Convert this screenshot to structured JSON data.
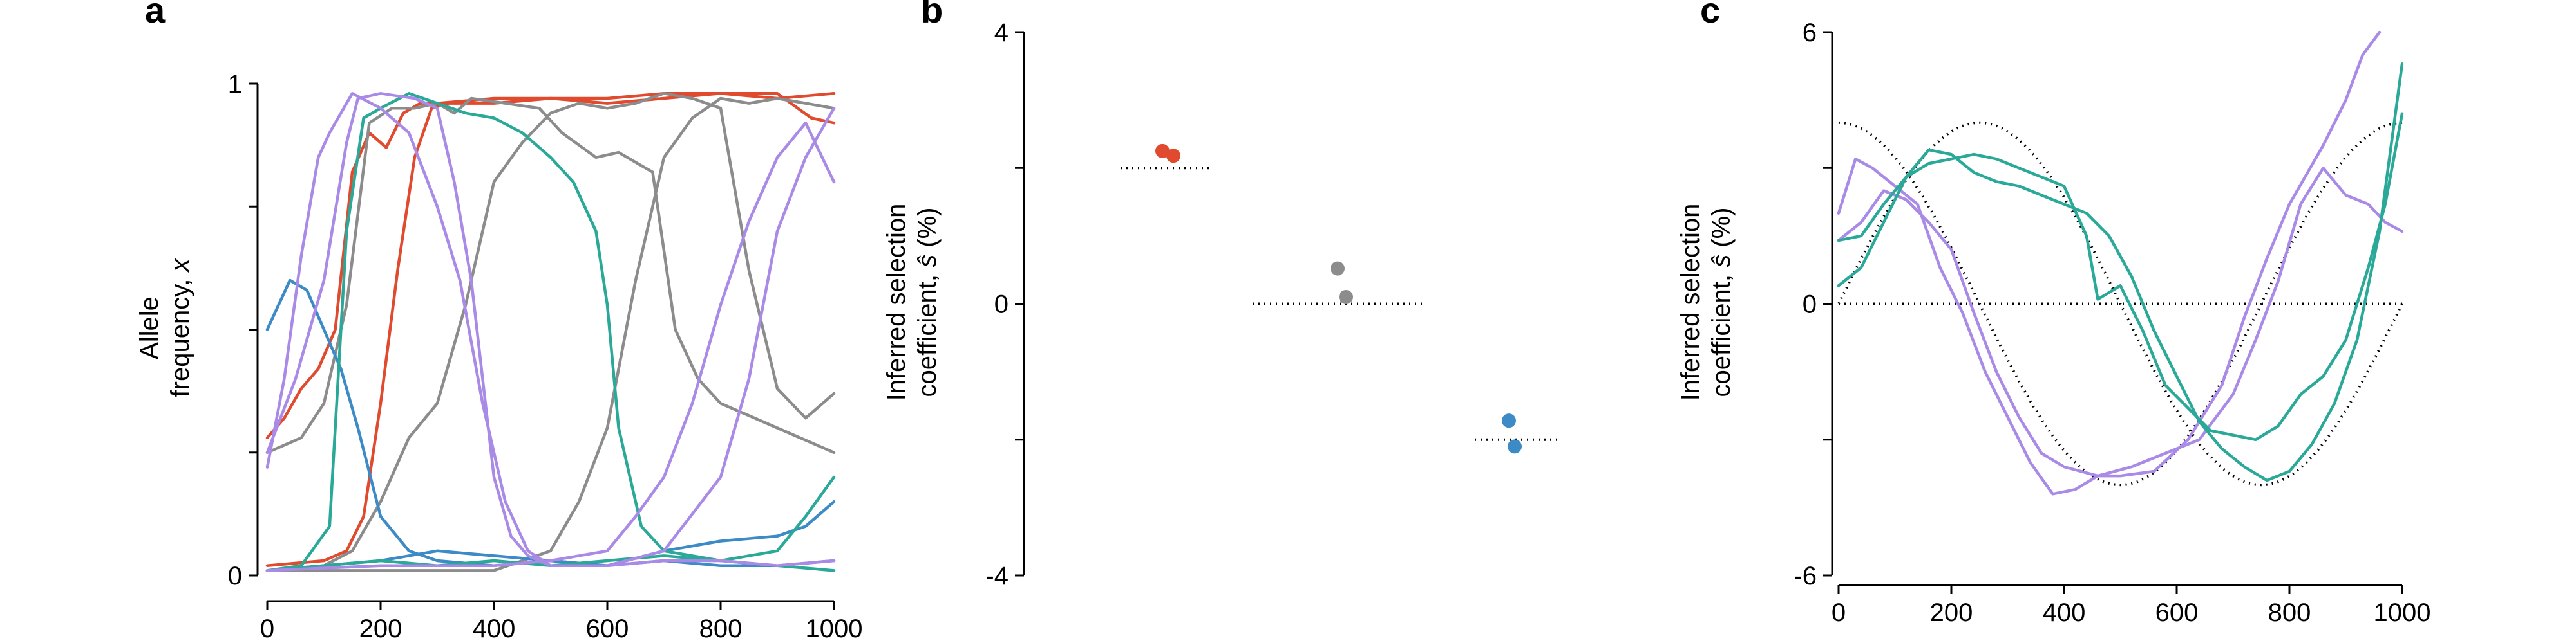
{
  "colors": {
    "red": "#e04a2f",
    "gray": "#8c8c8c",
    "blue": "#3c8ac6",
    "teal": "#2aa898",
    "purple": "#a98ae6"
  },
  "chart_data": [
    {
      "panel": "a",
      "type": "line",
      "xlabel": "",
      "ylabel_line1": "Allele",
      "ylabel_line2": "frequency, ",
      "ylabel_var": "x",
      "xlim": [
        0,
        1000
      ],
      "ylim": [
        0,
        1
      ],
      "xticks": [
        0,
        200,
        400,
        600,
        800,
        1000
      ],
      "yticks": [
        0,
        1
      ],
      "yticks_minor": [
        0.25,
        0.5,
        0.75
      ],
      "series": [
        {
          "color": "red",
          "x": [
            0,
            30,
            60,
            90,
            120,
            150,
            180,
            210,
            240,
            270,
            300,
            400,
            500,
            600,
            700,
            800,
            900,
            1000
          ],
          "y": [
            0.28,
            0.32,
            0.38,
            0.42,
            0.5,
            0.82,
            0.9,
            0.87,
            0.94,
            0.96,
            0.96,
            0.97,
            0.97,
            0.97,
            0.98,
            0.98,
            0.97,
            0.98
          ]
        },
        {
          "color": "red",
          "x": [
            0,
            100,
            140,
            170,
            200,
            230,
            260,
            290,
            320,
            400,
            500,
            600,
            700,
            800,
            900,
            960,
            1000
          ],
          "y": [
            0.02,
            0.03,
            0.05,
            0.12,
            0.35,
            0.62,
            0.85,
            0.95,
            0.96,
            0.96,
            0.97,
            0.96,
            0.97,
            0.98,
            0.98,
            0.93,
            0.92
          ]
        },
        {
          "color": "gray",
          "x": [
            0,
            60,
            100,
            140,
            180,
            220,
            260,
            300,
            330,
            360,
            420,
            480,
            520,
            580,
            620,
            680,
            720,
            760,
            800,
            900,
            1000
          ],
          "y": [
            0.25,
            0.28,
            0.35,
            0.55,
            0.92,
            0.95,
            0.95,
            0.96,
            0.94,
            0.97,
            0.96,
            0.95,
            0.9,
            0.85,
            0.86,
            0.82,
            0.5,
            0.4,
            0.35,
            0.3,
            0.25
          ]
        },
        {
          "color": "gray",
          "x": [
            0,
            100,
            150,
            200,
            250,
            300,
            350,
            400,
            450,
            500,
            550,
            600,
            650,
            700,
            750,
            800,
            850,
            900,
            950,
            1000
          ],
          "y": [
            0.01,
            0.02,
            0.05,
            0.15,
            0.28,
            0.35,
            0.55,
            0.8,
            0.88,
            0.94,
            0.96,
            0.95,
            0.96,
            0.98,
            0.97,
            0.95,
            0.62,
            0.38,
            0.32,
            0.37
          ]
        },
        {
          "color": "gray",
          "x": [
            0,
            400,
            500,
            550,
            600,
            650,
            700,
            750,
            800,
            850,
            900,
            950,
            1000
          ],
          "y": [
            0.01,
            0.01,
            0.05,
            0.15,
            0.3,
            0.6,
            0.85,
            0.93,
            0.97,
            0.96,
            0.97,
            0.96,
            0.95
          ]
        },
        {
          "color": "blue",
          "x": [
            0,
            20,
            40,
            70,
            100,
            130,
            160,
            200,
            250,
            300,
            400,
            500,
            600,
            700,
            800,
            900,
            1000
          ],
          "y": [
            0.5,
            0.55,
            0.6,
            0.58,
            0.5,
            0.42,
            0.3,
            0.12,
            0.05,
            0.03,
            0.02,
            0.03,
            0.02,
            0.03,
            0.02,
            0.02,
            0.03
          ]
        },
        {
          "color": "blue",
          "x": [
            0,
            100,
            200,
            300,
            400,
            500,
            600,
            700,
            800,
            900,
            950,
            1000
          ],
          "y": [
            0.01,
            0.02,
            0.03,
            0.05,
            0.04,
            0.03,
            0.02,
            0.05,
            0.07,
            0.08,
            0.1,
            0.15
          ]
        },
        {
          "color": "teal",
          "x": [
            0,
            60,
            110,
            140,
            170,
            200,
            250,
            300,
            350,
            400,
            450,
            500,
            540,
            580,
            600,
            620,
            660,
            700,
            800,
            900,
            1000
          ],
          "y": [
            0.01,
            0.02,
            0.1,
            0.7,
            0.93,
            0.95,
            0.98,
            0.96,
            0.94,
            0.93,
            0.9,
            0.85,
            0.8,
            0.7,
            0.55,
            0.3,
            0.1,
            0.05,
            0.03,
            0.02,
            0.01
          ]
        },
        {
          "color": "teal",
          "x": [
            0,
            100,
            200,
            300,
            400,
            500,
            600,
            700,
            800,
            900,
            950,
            1000
          ],
          "y": [
            0.01,
            0.02,
            0.03,
            0.02,
            0.03,
            0.02,
            0.03,
            0.04,
            0.03,
            0.05,
            0.12,
            0.2
          ]
        },
        {
          "color": "purple",
          "x": [
            0,
            30,
            60,
            90,
            110,
            130,
            150,
            200,
            250,
            300,
            340,
            380,
            420,
            460,
            500,
            600,
            700,
            800,
            900,
            1000
          ],
          "y": [
            0.22,
            0.4,
            0.65,
            0.85,
            0.9,
            0.94,
            0.98,
            0.95,
            0.9,
            0.75,
            0.6,
            0.35,
            0.15,
            0.05,
            0.02,
            0.02,
            0.03,
            0.03,
            0.02,
            0.03
          ]
        },
        {
          "color": "purple",
          "x": [
            0,
            50,
            100,
            140,
            160,
            200,
            260,
            300,
            330,
            360,
            380,
            400,
            430,
            460,
            500,
            600,
            700,
            800,
            850,
            900,
            950,
            1000
          ],
          "y": [
            0.25,
            0.4,
            0.6,
            0.88,
            0.97,
            0.98,
            0.97,
            0.95,
            0.8,
            0.6,
            0.4,
            0.2,
            0.08,
            0.04,
            0.02,
            0.02,
            0.05,
            0.2,
            0.4,
            0.7,
            0.85,
            0.95
          ]
        },
        {
          "color": "purple",
          "x": [
            0,
            200,
            400,
            500,
            600,
            650,
            700,
            750,
            800,
            850,
            900,
            950,
            1000
          ],
          "y": [
            0.01,
            0.02,
            0.02,
            0.03,
            0.05,
            0.12,
            0.2,
            0.35,
            0.55,
            0.72,
            0.85,
            0.92,
            0.8
          ]
        }
      ]
    },
    {
      "panel": "b",
      "type": "scatter",
      "ylabel_line1": "Inferred selection",
      "ylabel_line2": "coefficient, ",
      "ylabel_var": "ŝ",
      "ylabel_unit": " (%)",
      "ylim": [
        -4,
        4
      ],
      "yticks": [
        -4,
        0,
        4
      ],
      "yticks_minor": [
        -2,
        2
      ],
      "groups": [
        {
          "color": "red",
          "true_value": 2,
          "points": [
            2.25,
            2.18
          ]
        },
        {
          "color": "gray",
          "true_value": 0,
          "points": [
            0.52,
            0.1
          ]
        },
        {
          "color": "blue",
          "true_value": -2,
          "points": [
            -1.72,
            -2.1
          ]
        }
      ]
    },
    {
      "panel": "c",
      "type": "line",
      "ylabel_line1": "Inferred selection",
      "ylabel_line2": "coefficient, ",
      "ylabel_var": "ŝ",
      "ylabel_unit": " (%)",
      "xlim": [
        0,
        1000
      ],
      "ylim": [
        -6,
        6
      ],
      "xticks": [
        0,
        200,
        400,
        600,
        800,
        1000
      ],
      "yticks": [
        -6,
        0,
        6
      ],
      "yticks_minor": [
        -3,
        3
      ],
      "true_curves": [
        {
          "color": "teal",
          "amplitude": 4,
          "phase_shift": 250
        },
        {
          "color": "purple",
          "amplitude": 4,
          "phase_shift": 0
        }
      ],
      "series": [
        {
          "color": "purple",
          "x": [
            0,
            30,
            60,
            100,
            140,
            180,
            220,
            260,
            300,
            340,
            380,
            420,
            460,
            500,
            560,
            620,
            680,
            720,
            760,
            800,
            860,
            900,
            930,
            960
          ],
          "y": [
            2.0,
            3.2,
            3.0,
            2.6,
            2.2,
            0.8,
            -0.2,
            -1.5,
            -2.5,
            -3.5,
            -4.2,
            -4.1,
            -3.8,
            -3.8,
            -3.7,
            -3.0,
            -1.8,
            -0.3,
            1.0,
            2.2,
            3.5,
            4.5,
            5.5,
            6.0
          ]
        },
        {
          "color": "purple",
          "x": [
            0,
            40,
            80,
            120,
            160,
            200,
            240,
            280,
            320,
            360,
            400,
            460,
            520,
            580,
            640,
            700,
            740,
            780,
            820,
            860,
            900,
            940,
            970,
            1000
          ],
          "y": [
            1.4,
            1.8,
            2.5,
            2.3,
            1.8,
            1.2,
            -0.2,
            -1.5,
            -2.5,
            -3.3,
            -3.6,
            -3.8,
            -3.6,
            -3.3,
            -3.0,
            -2.0,
            -0.8,
            0.5,
            2.2,
            3.0,
            2.4,
            2.2,
            1.8,
            1.6
          ]
        },
        {
          "color": "teal",
          "x": [
            0,
            40,
            80,
            120,
            160,
            200,
            240,
            280,
            320,
            360,
            400,
            440,
            460,
            500,
            540,
            580,
            620,
            660,
            700,
            740,
            780,
            820,
            860,
            900,
            940,
            970,
            1000
          ],
          "y": [
            1.4,
            1.5,
            2.2,
            2.8,
            3.1,
            3.2,
            3.3,
            3.2,
            3.0,
            2.8,
            2.6,
            1.5,
            0.1,
            0.4,
            -0.6,
            -1.8,
            -2.3,
            -2.8,
            -2.9,
            -3.0,
            -2.7,
            -2.0,
            -1.6,
            -0.8,
            0.8,
            2.2,
            4.2
          ]
        },
        {
          "color": "teal",
          "x": [
            0,
            40,
            80,
            120,
            160,
            200,
            240,
            280,
            320,
            360,
            400,
            440,
            480,
            520,
            560,
            600,
            640,
            680,
            720,
            760,
            800,
            840,
            880,
            920,
            960,
            1000
          ],
          "y": [
            0.4,
            0.8,
            1.8,
            2.8,
            3.4,
            3.3,
            2.9,
            2.7,
            2.6,
            2.4,
            2.2,
            2.0,
            1.5,
            0.6,
            -0.6,
            -1.6,
            -2.6,
            -3.2,
            -3.6,
            -3.9,
            -3.7,
            -3.1,
            -2.2,
            -0.8,
            1.6,
            5.3
          ]
        }
      ]
    }
  ]
}
